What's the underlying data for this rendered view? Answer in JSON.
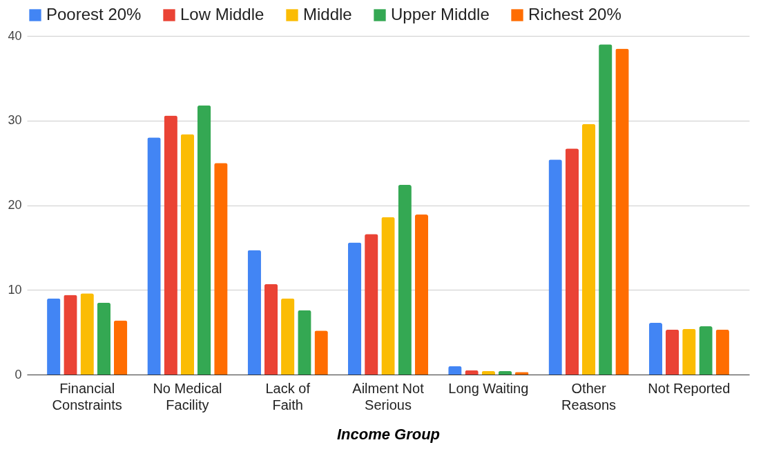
{
  "chart_data": {
    "type": "bar",
    "xlabel": "Income Group",
    "categories": [
      "Financial Constraints",
      "No Medical Facility",
      "Lack of Faith",
      "Ailment Not Serious",
      "Long Waiting",
      "Other Reasons",
      "Not Reported"
    ],
    "series": [
      {
        "name": "Poorest 20%",
        "color": "#4285f4",
        "values": [
          9.0,
          28.0,
          14.7,
          15.6,
          1.0,
          25.4,
          6.1
        ]
      },
      {
        "name": "Low Middle",
        "color": "#ea4335",
        "values": [
          9.4,
          30.6,
          10.7,
          16.6,
          0.5,
          26.7,
          5.3
        ]
      },
      {
        "name": "Middle",
        "color": "#fbbc04",
        "values": [
          9.6,
          28.4,
          9.0,
          18.6,
          0.4,
          29.6,
          5.4
        ]
      },
      {
        "name": "Upper Middle",
        "color": "#34a853",
        "values": [
          8.5,
          31.8,
          7.6,
          22.4,
          0.4,
          39.0,
          5.7
        ]
      },
      {
        "name": "Richest 20%",
        "color": "#ff6d01",
        "values": [
          6.4,
          25.0,
          5.2,
          18.9,
          0.3,
          38.5,
          5.3
        ]
      }
    ],
    "ylim": [
      0,
      40
    ],
    "yticks": [
      0,
      10,
      20,
      30,
      40
    ],
    "grid": "y",
    "legend": "top"
  }
}
